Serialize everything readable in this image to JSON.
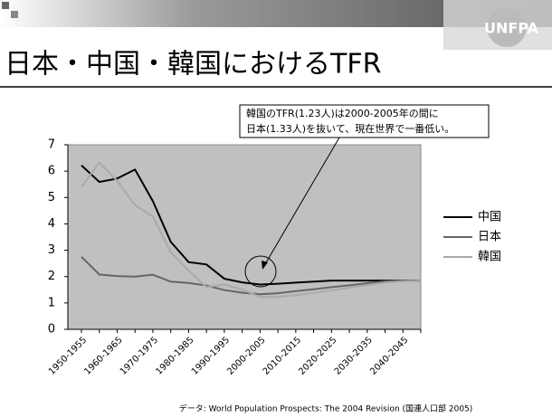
{
  "header": {
    "logo": "UNFPA"
  },
  "chart_data": {
    "type": "line",
    "title": "日本・中国・韓国におけるTFR",
    "annotation": [
      "韓国のTFR(1.23人)は2000-2005年の間に",
      "日本(1.33人)を抜いて、現在世界で一番低い。"
    ],
    "source": "データ: World Population Prospects: The 2004 Revision (国連人口部 2005)",
    "categories": [
      "1950-1955",
      null,
      "1960-1965",
      null,
      "1970-1975",
      null,
      "1980-1985",
      null,
      "1990-1995",
      null,
      "2000-2005",
      null,
      "2010-2015",
      null,
      "2020-2025",
      null,
      "2030-2035",
      null,
      "2040-2045",
      null
    ],
    "series": [
      {
        "name": "中国",
        "color": "#000000",
        "values": [
          6.22,
          5.59,
          5.72,
          6.06,
          4.86,
          3.32,
          2.55,
          2.46,
          1.92,
          1.78,
          1.7,
          1.73,
          1.77,
          1.81,
          1.85,
          1.85,
          1.85,
          1.85,
          1.85,
          1.85
        ]
      },
      {
        "name": "日本",
        "color": "#666666",
        "values": [
          2.75,
          2.08,
          2.02,
          2.0,
          2.07,
          1.81,
          1.76,
          1.66,
          1.49,
          1.39,
          1.33,
          1.37,
          1.45,
          1.52,
          1.6,
          1.67,
          1.75,
          1.82,
          1.85,
          1.85
        ]
      },
      {
        "name": "韓国",
        "color": "#aaaaaa",
        "values": [
          5.4,
          6.33,
          5.63,
          4.71,
          4.28,
          2.92,
          2.23,
          1.6,
          1.7,
          1.51,
          1.23,
          1.23,
          1.3,
          1.38,
          1.48,
          1.58,
          1.68,
          1.77,
          1.82,
          1.85
        ]
      }
    ],
    "ylim": [
      0,
      7
    ],
    "yticks": [
      0,
      1,
      2,
      3,
      4,
      5,
      6,
      7
    ],
    "grid": false,
    "legend": "right"
  }
}
